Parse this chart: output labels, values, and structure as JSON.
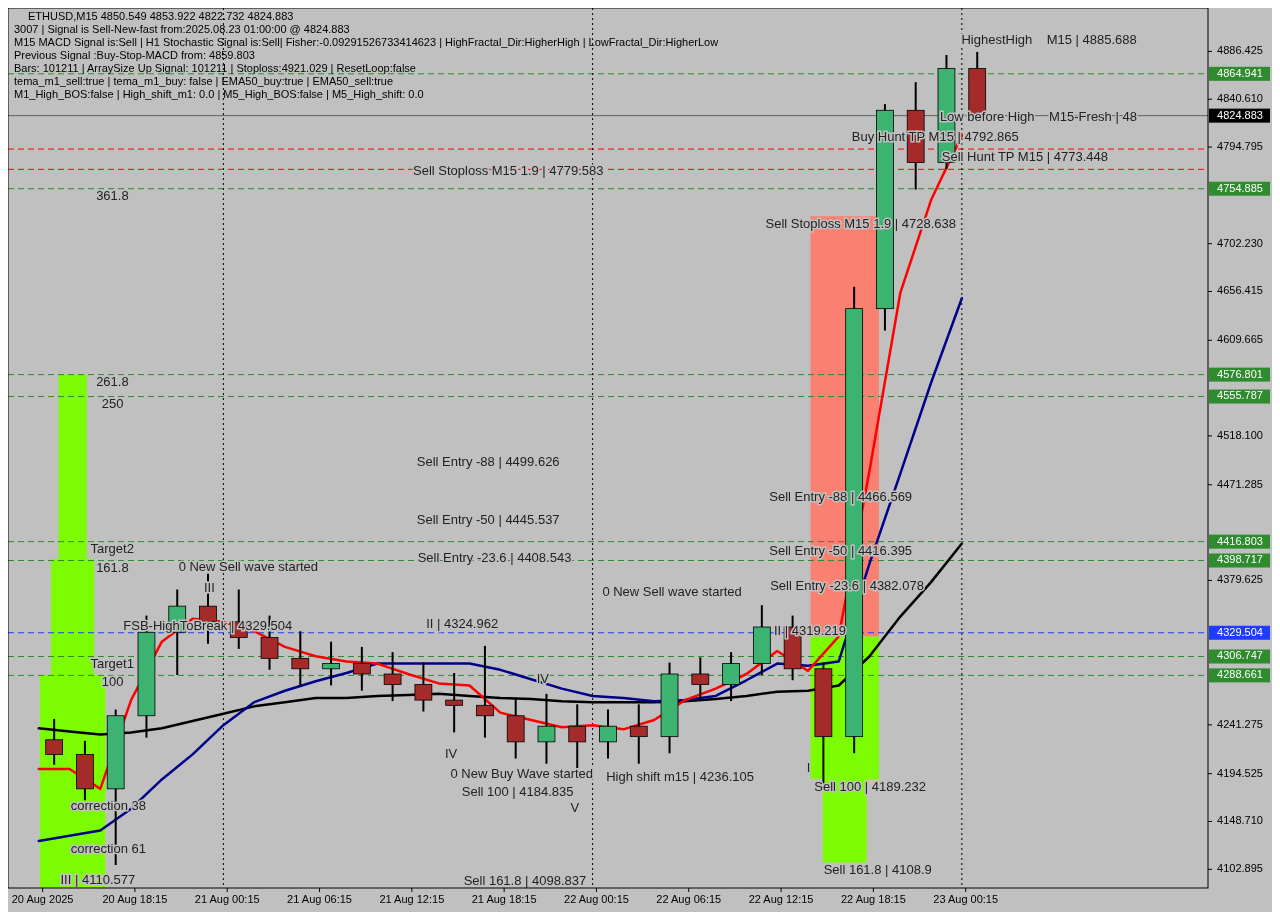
{
  "chart_data": {
    "type": "candlestick",
    "title": "ETHUSD,M15  4850.549 4853.922 4822.732 4824.883",
    "x": [
      "2025-08-20T13:00",
      "2025-08-20T15:00",
      "2025-08-20T17:00",
      "2025-08-20T19:00",
      "2025-08-20T21:00",
      "2025-08-20T23:00",
      "2025-08-21T01:00",
      "2025-08-21T03:00",
      "2025-08-21T05:00",
      "2025-08-21T07:00",
      "2025-08-21T09:00",
      "2025-08-21T11:00",
      "2025-08-21T13:00",
      "2025-08-21T15:00",
      "2025-08-21T17:00",
      "2025-08-21T19:00",
      "2025-08-21T21:00",
      "2025-08-21T23:00",
      "2025-08-22T01:00",
      "2025-08-22T03:00",
      "2025-08-22T05:00",
      "2025-08-22T07:00",
      "2025-08-22T09:00",
      "2025-08-22T11:00",
      "2025-08-22T13:00",
      "2025-08-22T15:00",
      "2025-08-22T17:00",
      "2025-08-22T19:00",
      "2025-08-22T21:00",
      "2025-08-22T23:00",
      "2025-08-23T01:00"
    ],
    "ohlc": [
      [
        4227,
        4246,
        4204,
        4213
      ],
      [
        4213,
        4225,
        4170,
        4180
      ],
      [
        4180,
        4255,
        4108,
        4250
      ],
      [
        4250,
        4345,
        4230,
        4330
      ],
      [
        4330,
        4370,
        4290,
        4355
      ],
      [
        4355,
        4385,
        4320,
        4340
      ],
      [
        4340,
        4370,
        4315,
        4325
      ],
      [
        4325,
        4345,
        4295,
        4305
      ],
      [
        4305,
        4330,
        4280,
        4295
      ],
      [
        4295,
        4320,
        4280,
        4300
      ],
      [
        4300,
        4315,
        4275,
        4290
      ],
      [
        4290,
        4310,
        4265,
        4280
      ],
      [
        4280,
        4300,
        4255,
        4265
      ],
      [
        4265,
        4290,
        4235,
        4260
      ],
      [
        4260,
        4316,
        4230,
        4250
      ],
      [
        4250,
        4265,
        4210,
        4225
      ],
      [
        4225,
        4270,
        4205,
        4240
      ],
      [
        4240,
        4260,
        4200,
        4225
      ],
      [
        4225,
        4255,
        4210,
        4240
      ],
      [
        4240,
        4260,
        4205,
        4230
      ],
      [
        4230,
        4300,
        4215,
        4290
      ],
      [
        4290,
        4305,
        4265,
        4280
      ],
      [
        4280,
        4310,
        4265,
        4300
      ],
      [
        4300,
        4355,
        4290,
        4335
      ],
      [
        4335,
        4345,
        4285,
        4295
      ],
      [
        4295,
        4300,
        4185,
        4230
      ],
      [
        4230,
        4660,
        4215,
        4640
      ],
      [
        4640,
        4835,
        4620,
        4830
      ],
      [
        4830,
        4856,
        4755,
        4780
      ],
      [
        4780,
        4882,
        4775,
        4870
      ],
      [
        4870,
        4885,
        4822,
        4824.883
      ]
    ],
    "colors": [
      "#a52a2a",
      "#a52a2a",
      "#3cb371",
      "#3cb371",
      "#3cb371",
      "#a52a2a",
      "#a52a2a",
      "#a52a2a",
      "#a52a2a",
      "#3cb371",
      "#a52a2a",
      "#a52a2a",
      "#a52a2a",
      "#a52a2a",
      "#a52a2a",
      "#a52a2a",
      "#3cb371",
      "#a52a2a",
      "#3cb371",
      "#a52a2a",
      "#3cb371",
      "#a52a2a",
      "#3cb371",
      "#3cb371",
      "#a52a2a",
      "#a52a2a",
      "#3cb371",
      "#3cb371",
      "#a52a2a",
      "#3cb371",
      "#a52a2a"
    ],
    "series": [
      {
        "type": "line",
        "color": "#000000",
        "x": [
          "2025-08-20T12:00",
          "2025-08-20T14:00",
          "2025-08-20T16:00",
          "2025-08-20T18:00",
          "2025-08-20T20:00",
          "2025-08-20T22:00",
          "2025-08-21T00:00",
          "2025-08-21T02:00",
          "2025-08-21T04:00",
          "2025-08-21T06:00",
          "2025-08-21T08:00",
          "2025-08-21T10:00",
          "2025-08-21T12:00",
          "2025-08-21T14:00",
          "2025-08-21T16:00",
          "2025-08-21T18:00",
          "2025-08-21T20:00",
          "2025-08-21T22:00",
          "2025-08-22T00:00",
          "2025-08-22T02:00",
          "2025-08-22T04:00",
          "2025-08-22T06:00",
          "2025-08-22T08:00",
          "2025-08-22T10:00",
          "2025-08-22T12:00",
          "2025-08-22T14:00",
          "2025-08-22T16:00",
          "2025-08-22T18:00",
          "2025-08-22T20:00",
          "2025-08-22T22:00",
          "2025-08-23T00:00"
        ],
        "values": [
          4238,
          4235,
          4232,
          4234,
          4238,
          4245,
          4252,
          4259,
          4263,
          4267,
          4267,
          4269,
          4270,
          4271,
          4269,
          4267,
          4266,
          4264,
          4263,
          4263,
          4263,
          4264,
          4266,
          4269,
          4273,
          4274,
          4279,
          4307,
          4345,
          4378,
          4415
        ]
      },
      {
        "type": "line",
        "color": "#00008b",
        "x": [
          "2025-08-20T12:00",
          "2025-08-20T14:00",
          "2025-08-20T16:00",
          "2025-08-20T18:00",
          "2025-08-20T20:00",
          "2025-08-20T22:00",
          "2025-08-21T00:00",
          "2025-08-21T02:00",
          "2025-08-21T04:00",
          "2025-08-21T06:00",
          "2025-08-21T08:00",
          "2025-08-21T10:00",
          "2025-08-21T12:00",
          "2025-08-21T14:00",
          "2025-08-21T16:00",
          "2025-08-21T18:00",
          "2025-08-21T20:00",
          "2025-08-21T22:00",
          "2025-08-22T00:00",
          "2025-08-22T02:00",
          "2025-08-22T04:00",
          "2025-08-22T06:00",
          "2025-08-22T08:00",
          "2025-08-22T10:00",
          "2025-08-22T12:00",
          "2025-08-22T14:00",
          "2025-08-22T16:00",
          "2025-08-22T18:00",
          "2025-08-22T20:00",
          "2025-08-22T22:00",
          "2025-08-23T00:00"
        ],
        "values": [
          4130,
          4135,
          4140,
          4161,
          4189,
          4213,
          4241,
          4263,
          4274,
          4283,
          4291,
          4300,
          4300,
          4300,
          4300,
          4294,
          4285,
          4276,
          4269,
          4267,
          4264,
          4265,
          4269,
          4284,
          4300,
          4298,
          4302,
          4396,
          4482,
          4569,
          4650
        ]
      },
      {
        "type": "line",
        "color": "#ff0000",
        "x": [
          "2025-08-20T12:00",
          "2025-08-20T14:00",
          "2025-08-20T16:00",
          "2025-08-20T18:00",
          "2025-08-20T20:00",
          "2025-08-20T22:00",
          "2025-08-21T00:00",
          "2025-08-21T02:00",
          "2025-08-21T04:00",
          "2025-08-21T06:00",
          "2025-08-21T08:00",
          "2025-08-21T10:00",
          "2025-08-21T12:00",
          "2025-08-21T14:00",
          "2025-08-21T16:00",
          "2025-08-21T18:00",
          "2025-08-21T20:00",
          "2025-08-21T22:00",
          "2025-08-22T00:00",
          "2025-08-22T02:00",
          "2025-08-22T04:00",
          "2025-08-22T06:00",
          "2025-08-22T08:00",
          "2025-08-22T10:00",
          "2025-08-22T12:00",
          "2025-08-22T14:00",
          "2025-08-22T16:00",
          "2025-08-22T18:00",
          "2025-08-22T20:00",
          "2025-08-22T22:00",
          "2025-08-23T00:00"
        ],
        "values": [
          4199,
          4199,
          4180,
          4265,
          4321,
          4343,
          4340,
          4331,
          4316,
          4307,
          4302,
          4300,
          4290,
          4281,
          4279,
          4253,
          4246,
          4239,
          4241,
          4237,
          4246,
          4265,
          4276,
          4290,
          4312,
          4293,
          4326,
          4485,
          4655,
          4744,
          4806
        ]
      }
    ],
    "xlim": [
      "2025-08-20T10:00",
      "2025-08-23T16:00"
    ],
    "xticks": [
      {
        "value": "2025-08-20T12:15",
        "label": "20 Aug 2025"
      },
      {
        "value": "2025-08-20T18:15",
        "label": "20 Aug 18:15"
      },
      {
        "value": "2025-08-21T00:15",
        "label": "21 Aug 00:15"
      },
      {
        "value": "2025-08-21T06:15",
        "label": "21 Aug 06:15"
      },
      {
        "value": "2025-08-21T12:15",
        "label": "21 Aug 12:15"
      },
      {
        "value": "2025-08-21T18:15",
        "label": "21 Aug 18:15"
      },
      {
        "value": "2025-08-22T00:15",
        "label": "22 Aug 00:15"
      },
      {
        "value": "2025-08-22T06:15",
        "label": "22 Aug 06:15"
      },
      {
        "value": "2025-08-22T12:15",
        "label": "22 Aug 12:15"
      },
      {
        "value": "2025-08-22T18:15",
        "label": "22 Aug 18:15"
      },
      {
        "value": "2025-08-23T00:15",
        "label": "23 Aug 00:15"
      }
    ],
    "ylim": [
      4085,
      4928
    ],
    "yticks": [
      4102.895,
      {
        "value": 4148.71,
        "label": "4148.710"
      },
      4194.525,
      4241.275,
      4379.625,
      4471.285,
      {
        "value": 4518.1,
        "label": "4518.100"
      },
      4609.665,
      4656.415,
      {
        "value": 4702.23,
        "label": "4702.230"
      },
      4794.795,
      {
        "value": 4840.61,
        "label": "4840.610"
      },
      4886.425
    ],
    "ref_lines": [
      {
        "axis": "y",
        "value": 4864.941,
        "label": "4864.941",
        "color": "#2e8b2e",
        "line_style": "dashed"
      },
      {
        "axis": "y",
        "value": 4824.883,
        "label": "4824.883",
        "color": "#000000",
        "line_style": "solid"
      },
      {
        "axis": "y",
        "value": 4792.865,
        "label": null,
        "color": "#ff0000",
        "line_style": "dashed"
      },
      {
        "axis": "y",
        "value": 4773.448,
        "label": null,
        "color": "#ff0000",
        "line_style": "dashed"
      },
      {
        "axis": "y",
        "value": 4754.885,
        "label": "4754.885",
        "color": "#2e8b2e",
        "line_style": "dashed"
      },
      {
        "axis": "y",
        "value": 4576.801,
        "label": "4576.801",
        "color": "#2e8b2e",
        "line_style": "dashed"
      },
      {
        "axis": "y",
        "value": 4555.787,
        "label": "4555.787",
        "color": "#2e8b2e",
        "line_style": "dashed"
      },
      {
        "axis": "y",
        "value": 4416.803,
        "label": "4416.803",
        "color": "#2e8b2e",
        "line_style": "dashed"
      },
      {
        "axis": "y",
        "value": 4398.717,
        "label": "4398.717",
        "color": "#2e8b2e",
        "line_style": "dashed"
      },
      {
        "axis": "y",
        "value": 4329.504,
        "label": "4329.504",
        "color": "#1e3cff",
        "line_style": "dashed"
      },
      {
        "axis": "y",
        "value": 4306.747,
        "label": "4306.747",
        "color": "#2e8b2e",
        "line_style": "dashed"
      },
      {
        "axis": "y",
        "value": 4288.661,
        "label": "4288.661",
        "color": "#2e8b2e",
        "line_style": "dashed"
      },
      {
        "axis": "x",
        "value": "2025-08-21T00:00",
        "label": null,
        "color": "#000000",
        "line_style": "dotted"
      },
      {
        "axis": "x",
        "value": "2025-08-22T00:00",
        "label": null,
        "color": "#000000",
        "line_style": "dotted"
      },
      {
        "axis": "x",
        "value": "2025-08-23T00:00",
        "label": null,
        "color": "#000000",
        "line_style": "dotted"
      }
    ],
    "annotations": [
      "3007 | Signal is Sell-New-fast from:2025.08.23 01:00:00 @ 4824.883",
      "M15 MACD Signal is:Sell | H1 Stochastic Signal is:Sell| Fisher:-0.09291526733414623 | HighFractal_Dir:HigherHigh | LowFractal_Dir:HigherLow",
      "Previous Signal :Buy-Stop-MACD from: 4859.803",
      "Bars: 101211 | ArraySize Up Signal: 101211 | Stoploss:4921.029 | ResetLoop:false",
      "tema_m1_sell:true | tema_m1_buy: false | EMA50_buy:true | EMA50_sell:true",
      "M1_High_BOS:false | High_shift_m1: 0.0 | M5_High_BOS:false | M5_High_shift: 0.0",
      "HighestHigh    M15 | 4885.688",
      "Low before High    M15-Fresh | 48",
      "Buy Hunt TP M15 | 4792.865",
      "Sell Hunt TP M15 | 4773.448",
      "Sell Stoploss M15 1.9 | 4779.583",
      "Sell Stoploss M15 1.9 | 4728.638",
      "361.8",
      "261.8",
      "250",
      "Sell Entry -88 | 4499.626",
      "Sell Entry -50 | 4445.537",
      "Sell Entry -23.6 | 4408.543",
      "Sell Entry -88 | 4466.569",
      "Sell Entry -50 | 4416.395",
      "Sell Entry -23.6 | 4382.078",
      "Target2",
      "161.8",
      "Target1",
      "100",
      "0 New Sell wave started",
      "III",
      "FSB-HighToBreak | 4329.504",
      "II | 4324.962",
      "0 New Sell wave started",
      "II | 4319.219",
      "IV",
      "IV",
      "High shift m15 | 4236.105",
      "0 New Buy Wave started",
      "Sell 100 | 4184.835",
      "V",
      "Sell 100 | 4189.232",
      "I",
      "Sell 161.8 | 4108.9",
      "Sell 161.8 | 4098.837",
      "correction 38",
      "correction 61",
      "III | 4110.577"
    ]
  }
}
